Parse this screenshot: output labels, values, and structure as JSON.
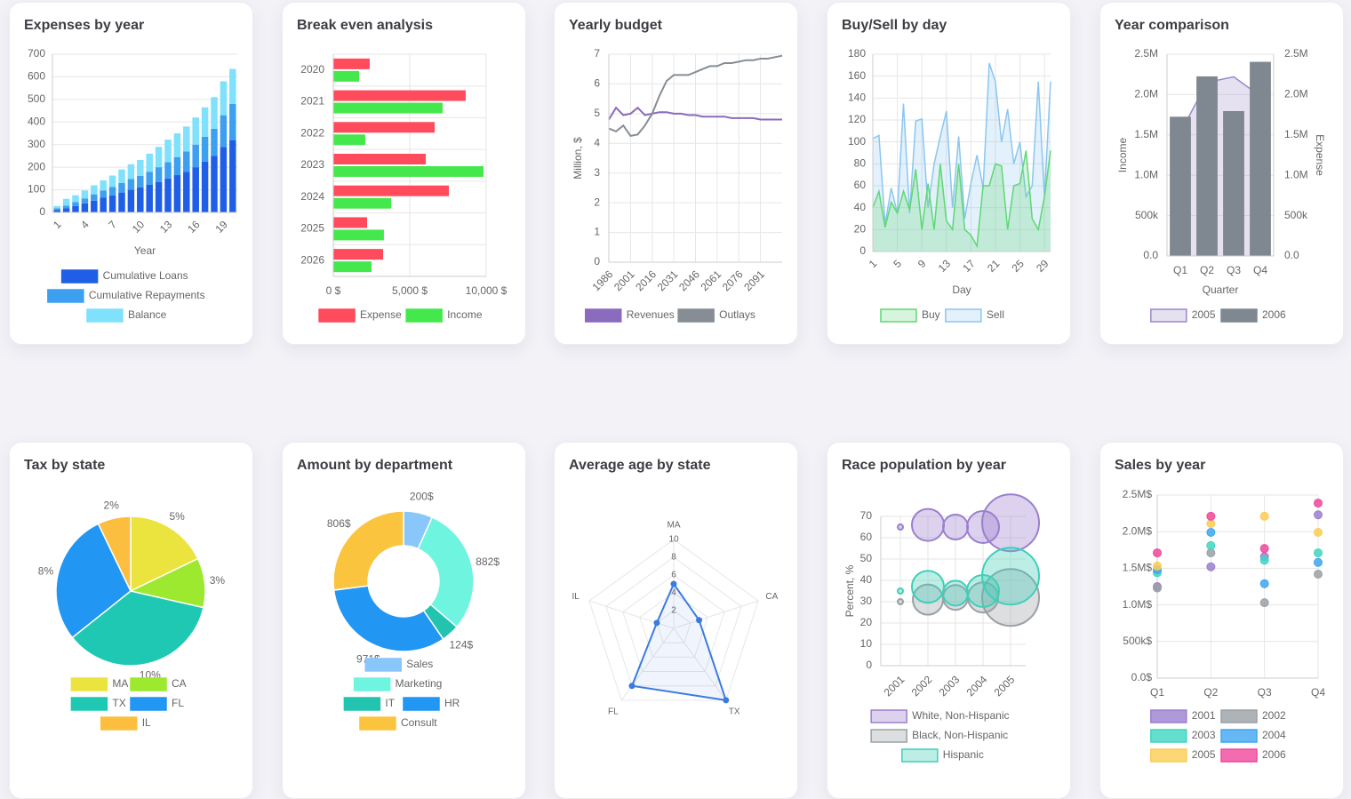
{
  "chart_data": [
    {
      "type": "bar",
      "title": "Expenses by year",
      "stacked": true,
      "grid": true,
      "x_label": "Year",
      "categories": [
        1,
        null,
        null,
        4,
        null,
        null,
        7,
        null,
        null,
        10,
        null,
        null,
        13,
        null,
        null,
        16,
        null,
        null,
        19,
        null
      ],
      "series": [
        {
          "name": "Cumulative Loans",
          "color": "#1f5ee6",
          "values": [
            10,
            18,
            28,
            40,
            52,
            65,
            75,
            88,
            100,
            110,
            122,
            135,
            150,
            165,
            180,
            200,
            225,
            250,
            290,
            320
          ]
        },
        {
          "name": "Cumulative Repayments",
          "color": "#3c9ff0",
          "values": [
            8,
            12,
            18,
            22,
            28,
            32,
            38,
            42,
            48,
            52,
            58,
            65,
            72,
            80,
            90,
            100,
            110,
            120,
            140,
            160
          ]
        },
        {
          "name": "Balance",
          "color": "#7fe1fb",
          "values": [
            10,
            30,
            30,
            35,
            40,
            45,
            50,
            60,
            65,
            70,
            80,
            90,
            100,
            105,
            110,
            120,
            130,
            140,
            150,
            155
          ]
        }
      ],
      "ylim": [
        0,
        700
      ],
      "yticks": [
        0,
        100,
        200,
        300,
        400,
        500,
        600,
        700
      ]
    },
    {
      "type": "bar",
      "orientation": "horizontal",
      "title": "Break even analysis",
      "grid": true,
      "categories": [
        "2020",
        "2021",
        "2022",
        "2023",
        "2024",
        "2025",
        "2026"
      ],
      "series": [
        {
          "name": "Expense",
          "color": "#ff4b5c",
          "values": [
            2380,
            8660,
            6630,
            6050,
            7560,
            2210,
            3260
          ]
        },
        {
          "name": "Income",
          "color": "#45e84c",
          "values": [
            1690,
            7150,
            2090,
            9830,
            3780,
            3310,
            2500
          ]
        }
      ],
      "xlim": [
        0,
        10000
      ],
      "xticks": [
        {
          "value": 0,
          "label": "0 $"
        },
        {
          "value": 5000,
          "label": "5,000 $"
        },
        {
          "value": 10000,
          "label": "10,000 $"
        }
      ]
    },
    {
      "type": "line",
      "title": "Yearly budget",
      "grid": true,
      "y_label": "Million, $",
      "x": [
        1986,
        1991,
        1996,
        2001,
        2006,
        2011,
        2016,
        2021,
        2026,
        2031,
        2036,
        2041,
        2046,
        2051,
        2056,
        2061,
        2066,
        2071,
        2076,
        2081,
        2086,
        2091,
        2096,
        2101,
        2106
      ],
      "series": [
        {
          "name": "Revenues",
          "color": "#8a6bbd",
          "values": [
            4.8,
            5.2,
            4.95,
            5.0,
            5.2,
            4.95,
            5.0,
            5.05,
            5.05,
            5.0,
            5.0,
            4.95,
            4.95,
            4.9,
            4.9,
            4.9,
            4.9,
            4.85,
            4.85,
            4.85,
            4.85,
            4.8,
            4.8,
            4.8,
            4.8
          ]
        },
        {
          "name": "Outlays",
          "color": "#868d94",
          "values": [
            4.5,
            4.4,
            4.6,
            4.25,
            4.3,
            4.6,
            5.0,
            5.6,
            6.1,
            6.3,
            6.3,
            6.3,
            6.4,
            6.5,
            6.6,
            6.6,
            6.7,
            6.7,
            6.75,
            6.8,
            6.8,
            6.85,
            6.85,
            6.9,
            6.95
          ]
        }
      ],
      "xlim": [
        1986,
        2106
      ],
      "xticks": [
        1986,
        2001,
        2016,
        2031,
        2046,
        2061,
        2076,
        2091
      ],
      "ylim": [
        0,
        7
      ],
      "yticks": [
        0,
        1,
        2,
        3,
        4,
        5,
        6,
        7
      ]
    },
    {
      "type": "area",
      "title": "Buy/Sell by day",
      "grid": true,
      "x_label": "Day",
      "categories": [
        1,
        null,
        null,
        null,
        5,
        null,
        null,
        null,
        9,
        null,
        null,
        null,
        13,
        null,
        null,
        null,
        17,
        null,
        null,
        null,
        21,
        null,
        null,
        null,
        25,
        null,
        null,
        null,
        29,
        null
      ],
      "series": [
        {
          "name": "Buy",
          "color": "#5fd872",
          "values": [
            40,
            55,
            22,
            45,
            35,
            55,
            38,
            75,
            20,
            62,
            20,
            80,
            28,
            20,
            80,
            20,
            15,
            5,
            60,
            60,
            80,
            78,
            20,
            60,
            62,
            92,
            30,
            20,
            50,
            92
          ]
        },
        {
          "name": "Sell",
          "color": "#8cc6f0",
          "values": [
            103,
            106,
            25,
            58,
            35,
            135,
            35,
            119,
            121,
            40,
            80,
            105,
            128,
            40,
            105,
            30,
            62,
            88,
            58,
            172,
            155,
            100,
            130,
            80,
            100,
            50,
            60,
            155,
            50,
            155
          ]
        }
      ],
      "ylim": [
        0,
        180
      ],
      "yticks": [
        0,
        20,
        40,
        60,
        80,
        100,
        120,
        140,
        160,
        180
      ]
    },
    {
      "type": "combo",
      "title": "Year comparison",
      "grid": true,
      "x_label": "Quarter",
      "y_label": "Income",
      "y2_label": "Expense",
      "categories": [
        "Q1",
        "Q2",
        "Q3",
        "Q4"
      ],
      "series": [
        {
          "name": "2005",
          "type": "line",
          "axis": "y2",
          "color": "#9b86c9",
          "values": [
            1530000,
            2150000,
            2220000,
            1980000
          ]
        },
        {
          "name": "2006",
          "type": "bar",
          "axis": "y",
          "color": "#7f8890",
          "values": [
            1720000,
            2220000,
            1790000,
            2400000
          ]
        }
      ],
      "ylim": [
        0,
        2500000
      ],
      "yticks": [
        {
          "value": 0,
          "label": "0.0"
        },
        {
          "value": 500000,
          "label": "500k"
        },
        {
          "value": 1000000,
          "label": "1.0M"
        },
        {
          "value": 1500000,
          "label": "1.5M"
        },
        {
          "value": 2000000,
          "label": "2.0M"
        },
        {
          "value": 2500000,
          "label": "2.5M"
        }
      ],
      "y2lim": [
        0,
        2500000
      ],
      "y2ticks": [
        {
          "value": 0,
          "label": "0.0"
        },
        {
          "value": 500000,
          "label": "500k"
        },
        {
          "value": 1000000,
          "label": "1.0M"
        },
        {
          "value": 1500000,
          "label": "1.5M"
        },
        {
          "value": 2000000,
          "label": "2.0M"
        },
        {
          "value": 2500000,
          "label": "2.5M"
        }
      ]
    },
    {
      "type": "pie",
      "title": "Tax by state",
      "categories": [
        "MA",
        "CA",
        "TX",
        "FL",
        "IL"
      ],
      "values": [
        5,
        3,
        10,
        8,
        2
      ],
      "value_labels": [
        "5%",
        "3%",
        "10%",
        "8%",
        "2%"
      ],
      "colors": [
        "#ece43e",
        "#9ce92f",
        "#1fc8b2",
        "#2196f3",
        "#fbbe3e"
      ]
    },
    {
      "type": "doughnut",
      "title": "Amount by department",
      "categories": [
        "Sales",
        "Marketing",
        "IT",
        "HR",
        "Consult"
      ],
      "values": [
        200,
        882,
        124,
        971,
        806
      ],
      "value_labels": [
        "200$",
        "882$",
        "124$",
        "971$",
        "806$"
      ],
      "colors": [
        "#89c7fb",
        "#6ff4e0",
        "#22c3af",
        "#2196f3",
        "#fbc43f"
      ]
    },
    {
      "type": "radar",
      "title": "Average age by state",
      "categories": [
        "MA",
        "CA",
        "TX",
        "FL",
        "IL"
      ],
      "series": [
        {
          "color": "#3b7be0",
          "values": [
            5,
            3,
            10,
            8,
            2
          ]
        }
      ],
      "rlim": [
        0,
        10
      ],
      "rticks": [
        2,
        4,
        6,
        8,
        10
      ]
    },
    {
      "type": "bubble",
      "title": "Race population by year",
      "grid": true,
      "y_label": "Percent, %",
      "categories": [
        "2001",
        "2002",
        "2003",
        "2004",
        "2005"
      ],
      "series": [
        {
          "name": "White, Non-Hispanic",
          "color": "#9b7fcf",
          "values": [
            65,
            66,
            65,
            65,
            67
          ],
          "sizes": [
            3,
            18,
            14,
            18,
            32
          ]
        },
        {
          "name": "Black, Non-Hispanic",
          "color": "#9aa0a6",
          "values": [
            30,
            31,
            32,
            32,
            32
          ],
          "sizes": [
            3,
            17,
            14,
            17,
            32
          ]
        },
        {
          "name": "Hispanic",
          "color": "#3fcfb8",
          "values": [
            35,
            37,
            34,
            35,
            42
          ],
          "sizes": [
            3,
            18,
            14,
            18,
            32
          ]
        }
      ],
      "ylim": [
        0,
        70
      ],
      "yticks": [
        0,
        10,
        20,
        30,
        40,
        50,
        60,
        70
      ]
    },
    {
      "type": "scatter",
      "title": "Sales by year",
      "grid": true,
      "categories": [
        "Q1",
        "Q2",
        "Q3",
        "Q4"
      ],
      "series": [
        {
          "name": "2001",
          "color": "#9b7fcf",
          "values": [
            1250000,
            1520000,
            1660000,
            2230000
          ]
        },
        {
          "name": "2002",
          "color": "#9aa0a6",
          "values": [
            1230000,
            1710000,
            1030000,
            1420000
          ]
        },
        {
          "name": "2003",
          "color": "#3fd6c0",
          "values": [
            1440000,
            1810000,
            1610000,
            1710000
          ]
        },
        {
          "name": "2004",
          "color": "#3fa6f0",
          "values": [
            1480000,
            1990000,
            1290000,
            1580000
          ]
        },
        {
          "name": "2005",
          "color": "#fccc52",
          "values": [
            1530000,
            2110000,
            2210000,
            1990000
          ]
        },
        {
          "name": "2006",
          "color": "#f0479b",
          "values": [
            1710000,
            2210000,
            1770000,
            2390000
          ]
        }
      ],
      "ylim": [
        0,
        2500000
      ],
      "yticks": [
        {
          "value": 0,
          "label": "0.0$"
        },
        {
          "value": 500000,
          "label": "500k$"
        },
        {
          "value": 1000000,
          "label": "1.0M$"
        },
        {
          "value": 1500000,
          "label": "1.5M$"
        },
        {
          "value": 2000000,
          "label": "2.0M$"
        },
        {
          "value": 2500000,
          "label": "2.5M$"
        }
      ]
    }
  ]
}
